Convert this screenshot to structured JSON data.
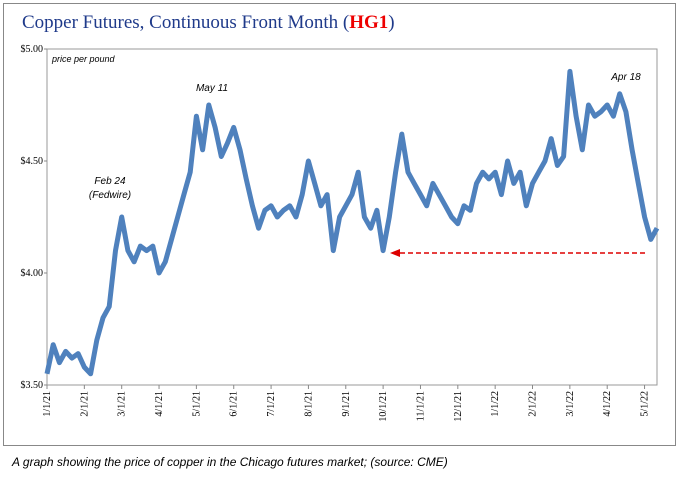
{
  "chart_data": {
    "type": "line",
    "title_parts": [
      "Copper Futures, Continuous Front Month (",
      "HG1",
      ")"
    ],
    "unit_note": "price per pound",
    "annotations": [
      "Feb 24",
      "(Fedwire)",
      "May 11",
      "Apr 18"
    ],
    "caption": "A graph showing the price of copper in the Chicago futures market; (source: CME)",
    "categories": [
      "1/1/21",
      null,
      null,
      null,
      null,
      null,
      "2/1/21",
      null,
      null,
      null,
      null,
      null,
      "3/1/21",
      null,
      null,
      null,
      null,
      null,
      "4/1/21",
      null,
      null,
      null,
      null,
      null,
      "5/1/21",
      null,
      null,
      null,
      null,
      null,
      "6/1/21",
      null,
      null,
      null,
      null,
      null,
      "7/1/21",
      null,
      null,
      null,
      null,
      null,
      "8/1/21",
      null,
      null,
      null,
      null,
      null,
      "9/1/21",
      null,
      null,
      null,
      null,
      null,
      "10/1/21",
      null,
      null,
      null,
      null,
      null,
      "11/1/21",
      null,
      null,
      null,
      null,
      null,
      "12/1/21",
      null,
      null,
      null,
      null,
      null,
      "1/1/22",
      null,
      null,
      null,
      null,
      null,
      "2/1/22",
      null,
      null,
      null,
      null,
      null,
      "3/1/22",
      null,
      null,
      null,
      null,
      null,
      "4/1/22",
      null,
      null,
      null,
      null,
      null,
      "5/1/22",
      null,
      null
    ],
    "series": [
      {
        "name": "HG1",
        "color": "#4f81bd",
        "values": [
          3.55,
          3.68,
          3.6,
          3.65,
          3.62,
          3.64,
          3.58,
          3.55,
          3.7,
          3.8,
          3.85,
          4.1,
          4.25,
          4.1,
          4.05,
          4.12,
          4.1,
          4.12,
          4.0,
          4.05,
          4.15,
          4.25,
          4.35,
          4.45,
          4.7,
          4.55,
          4.75,
          4.65,
          4.52,
          4.58,
          4.65,
          4.55,
          4.42,
          4.3,
          4.2,
          4.28,
          4.3,
          4.25,
          4.28,
          4.3,
          4.25,
          4.35,
          4.5,
          4.4,
          4.3,
          4.35,
          4.1,
          4.25,
          4.3,
          4.35,
          4.45,
          4.25,
          4.2,
          4.28,
          4.1,
          4.25,
          4.45,
          4.62,
          4.45,
          4.4,
          4.35,
          4.3,
          4.4,
          4.35,
          4.3,
          4.25,
          4.22,
          4.3,
          4.28,
          4.4,
          4.45,
          4.42,
          4.45,
          4.35,
          4.5,
          4.4,
          4.45,
          4.3,
          4.4,
          4.45,
          4.5,
          4.6,
          4.48,
          4.52,
          4.9,
          4.7,
          4.55,
          4.75,
          4.7,
          4.72,
          4.75,
          4.7,
          4.8,
          4.72,
          4.55,
          4.4,
          4.25,
          4.15,
          4.2
        ]
      }
    ],
    "ylim": [
      3.5,
      5
    ],
    "yticks": [
      {
        "value": 3.5,
        "label": "$3.50"
      },
      {
        "value": 4,
        "label": "$4.00"
      },
      {
        "value": 4.5,
        "label": "$4.50"
      },
      {
        "value": 5,
        "label": "$5.00"
      }
    ],
    "grid": false
  }
}
